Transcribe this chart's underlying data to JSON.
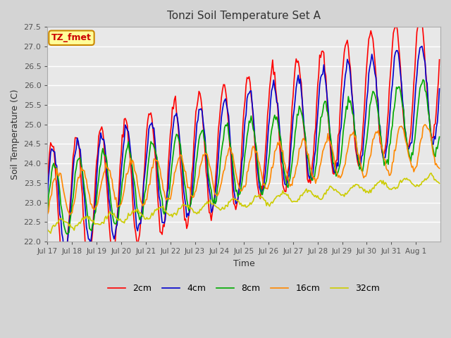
{
  "title": "Tonzi Soil Temperature Set A",
  "xlabel": "Time",
  "ylabel": "Soil Temperature (C)",
  "ylim": [
    22.0,
    27.5
  ],
  "legend_labels": [
    "2cm",
    "4cm",
    "8cm",
    "16cm",
    "32cm"
  ],
  "line_colors": [
    "#ff0000",
    "#0000cc",
    "#00aa00",
    "#ff8800",
    "#cccc00"
  ],
  "annotation_text": "TZ_fmet",
  "annotation_bg": "#ffff99",
  "annotation_border": "#cc8800",
  "annotation_color": "#cc0000",
  "x_tick_labels": [
    "Jul 17",
    "Jul 18",
    "Jul 19",
    "Jul 20",
    "Jul 21",
    "Jul 22",
    "Jul 23",
    "Jul 24",
    "Jul 25",
    "Jul 26",
    "Jul 27",
    "Jul 28",
    "Jul 29",
    "Jul 30",
    "Jul 31",
    "Aug 1"
  ],
  "n_points": 384
}
